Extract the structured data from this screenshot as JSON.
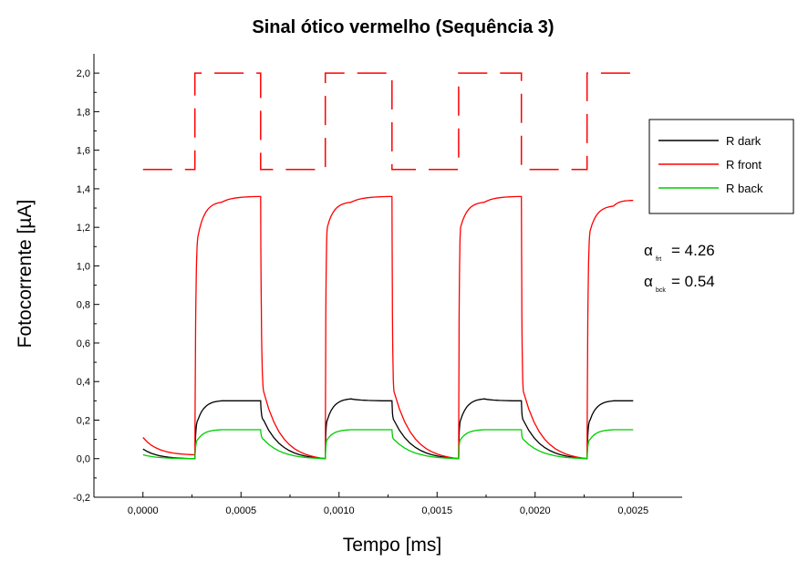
{
  "chart_data": {
    "type": "line",
    "title": "Sinal ótico vermelho (Sequência 3)",
    "xlabel": "Tempo [ms]",
    "ylabel": "Fotocorrente [µA]",
    "xlim": [
      -0.00025,
      0.00275
    ],
    "ylim": [
      -0.2,
      2.1
    ],
    "x_ticks": [
      0.0,
      0.0005,
      0.001,
      0.0015,
      0.002,
      0.0025
    ],
    "x_tick_labels": [
      "0,0000",
      "0,0005",
      "0,0010",
      "0,0015",
      "0,0020",
      "0,0025"
    ],
    "y_ticks": [
      -0.2,
      0.0,
      0.2,
      0.4,
      0.6,
      0.8,
      1.0,
      1.2,
      1.4,
      1.6,
      1.8,
      2.0
    ],
    "y_tick_labels": [
      "-0,2",
      "0,0",
      "0,2",
      "0,4",
      "0,6",
      "0,8",
      "1,0",
      "1,2",
      "1,4",
      "1,6",
      "1,8",
      "2,0"
    ],
    "grid": false,
    "legend_position": "right",
    "pulse": {
      "low": 1.5,
      "high": 2.0,
      "x_start": 0.0,
      "x_end": 0.0025,
      "rise_times": [
        0.000265,
        0.00093,
        0.00161,
        0.002265
      ],
      "fall_times": [
        0.0006,
        0.00127,
        0.00193
      ],
      "style": "dashed",
      "color": "#ff0000"
    },
    "series": [
      {
        "name": "R dark",
        "color": "#000000",
        "style": "solid",
        "x": [
          0.0,
          0.000265,
          0.00028,
          0.0004,
          0.0006,
          0.000615,
          0.00093,
          0.00094,
          0.00106,
          0.00127,
          0.00128,
          0.00161,
          0.00162,
          0.00174,
          0.00193,
          0.00194,
          0.002265,
          0.00228,
          0.0024,
          0.0025
        ],
        "y": [
          0.05,
          0.0,
          0.2,
          0.3,
          0.3,
          0.2,
          0.0,
          0.2,
          0.31,
          0.3,
          0.2,
          0.0,
          0.2,
          0.31,
          0.3,
          0.2,
          0.0,
          0.2,
          0.3,
          0.3
        ]
      },
      {
        "name": "R front",
        "color": "#ff0000",
        "style": "solid",
        "x": [
          0.0,
          0.000265,
          0.00028,
          0.0004,
          0.0006,
          0.000615,
          0.00093,
          0.00094,
          0.00106,
          0.00127,
          0.00128,
          0.00161,
          0.00162,
          0.00174,
          0.00193,
          0.00194,
          0.002265,
          0.00228,
          0.0024,
          0.0025
        ],
        "y": [
          0.11,
          0.02,
          1.15,
          1.33,
          1.36,
          0.35,
          0.0,
          1.2,
          1.33,
          1.36,
          0.35,
          0.0,
          1.2,
          1.33,
          1.36,
          0.35,
          0.0,
          1.18,
          1.31,
          1.34
        ]
      },
      {
        "name": "R back",
        "color": "#00cc00",
        "style": "solid",
        "x": [
          0.0,
          0.000265,
          0.00028,
          0.0004,
          0.0006,
          0.000615,
          0.00093,
          0.00094,
          0.00106,
          0.00127,
          0.00128,
          0.00161,
          0.00162,
          0.00174,
          0.00193,
          0.00194,
          0.002265,
          0.00228,
          0.0024,
          0.0025
        ],
        "y": [
          0.02,
          0.0,
          0.1,
          0.15,
          0.15,
          0.1,
          0.0,
          0.1,
          0.15,
          0.15,
          0.1,
          0.0,
          0.1,
          0.15,
          0.15,
          0.1,
          0.0,
          0.1,
          0.15,
          0.15
        ]
      }
    ],
    "annotations": [
      {
        "greek": "α",
        "sub": "frt",
        "text": "= 4.26"
      },
      {
        "greek": "α",
        "sub": "bck",
        "text": "= 0.54"
      }
    ]
  }
}
